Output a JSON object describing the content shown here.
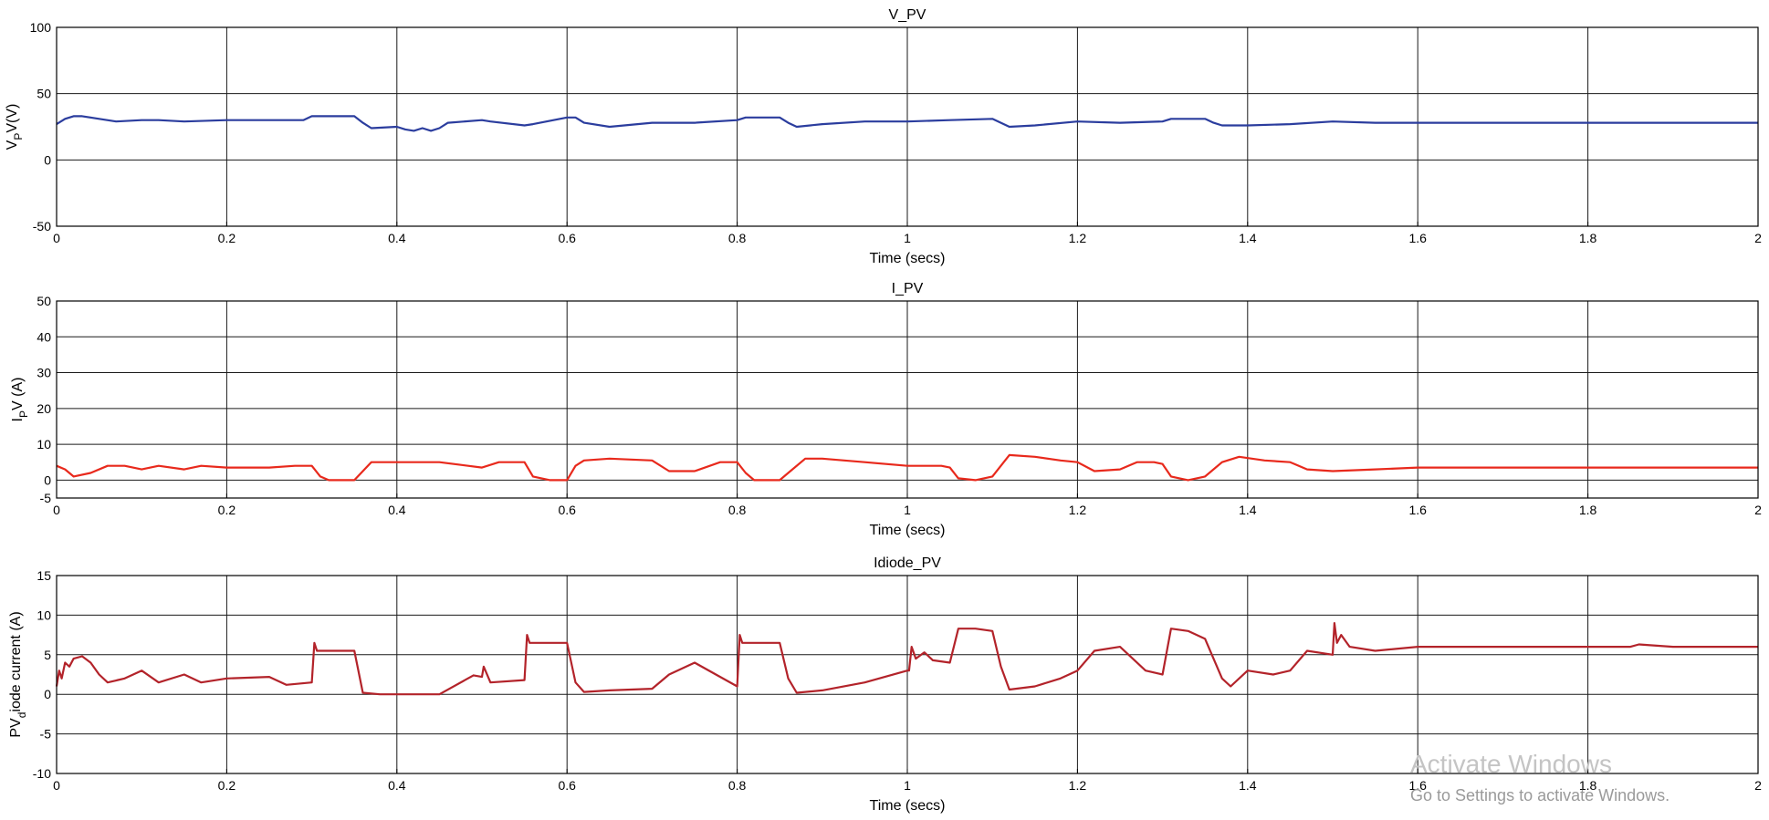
{
  "chart_data": [
    {
      "type": "line",
      "title": "V_PV",
      "xlabel": "Time (secs)",
      "ylabel_main": "V",
      "ylabel_sub": "P",
      "ylabel_rest": "V(V)",
      "xlim": [
        0,
        2
      ],
      "ylim": [
        -50,
        100
      ],
      "xticks": [
        0,
        0.2,
        0.4,
        0.6,
        0.8,
        1,
        1.2,
        1.4,
        1.6,
        1.8,
        2
      ],
      "yticks": [
        -50,
        0,
        50,
        100
      ],
      "grid": true,
      "series": [
        {
          "color": "#2b3d9e",
          "x": [
            0,
            0.01,
            0.02,
            0.03,
            0.05,
            0.07,
            0.1,
            0.12,
            0.15,
            0.2,
            0.25,
            0.29,
            0.3,
            0.35,
            0.36,
            0.37,
            0.4,
            0.41,
            0.42,
            0.43,
            0.44,
            0.45,
            0.46,
            0.5,
            0.51,
            0.55,
            0.56,
            0.6,
            0.61,
            0.62,
            0.65,
            0.7,
            0.75,
            0.8,
            0.81,
            0.85,
            0.86,
            0.87,
            0.9,
            0.95,
            1.0,
            1.05,
            1.1,
            1.11,
            1.12,
            1.15,
            1.2,
            1.25,
            1.3,
            1.31,
            1.35,
            1.36,
            1.37,
            1.4,
            1.45,
            1.5,
            1.55,
            1.6,
            1.7,
            1.8,
            1.9,
            2.0
          ],
          "y": [
            27,
            31,
            33,
            33,
            31,
            29,
            30,
            30,
            29,
            30,
            30,
            30,
            33,
            33,
            28,
            24,
            25,
            23,
            22,
            24,
            22,
            24,
            28,
            30,
            29,
            26,
            27,
            32,
            32,
            28,
            25,
            28,
            28,
            30,
            32,
            32,
            28,
            25,
            27,
            29,
            29,
            30,
            31,
            28,
            25,
            26,
            29,
            28,
            29,
            31,
            31,
            28,
            26,
            26,
            27,
            29,
            28,
            28,
            28,
            28,
            28,
            28
          ]
        }
      ]
    },
    {
      "type": "line",
      "title": "I_PV",
      "xlabel": "Time (secs)",
      "ylabel_main": "I",
      "ylabel_sub": "P",
      "ylabel_rest": "V (A)",
      "xlim": [
        0,
        2
      ],
      "ylim": [
        -5,
        50
      ],
      "xticks": [
        0,
        0.2,
        0.4,
        0.6,
        0.8,
        1,
        1.2,
        1.4,
        1.6,
        1.8,
        2
      ],
      "yticks": [
        0,
        10,
        20,
        30,
        40,
        50
      ],
      "ytick_bottom": -5,
      "grid": true,
      "series": [
        {
          "color": "#e8291c",
          "x": [
            0,
            0.01,
            0.02,
            0.04,
            0.06,
            0.08,
            0.1,
            0.12,
            0.15,
            0.17,
            0.2,
            0.25,
            0.28,
            0.3,
            0.31,
            0.32,
            0.35,
            0.37,
            0.4,
            0.45,
            0.5,
            0.52,
            0.54,
            0.55,
            0.56,
            0.58,
            0.6,
            0.61,
            0.62,
            0.65,
            0.7,
            0.72,
            0.75,
            0.78,
            0.8,
            0.81,
            0.82,
            0.85,
            0.86,
            0.88,
            0.9,
            0.95,
            1.0,
            1.04,
            1.05,
            1.06,
            1.08,
            1.1,
            1.12,
            1.15,
            1.18,
            1.2,
            1.22,
            1.25,
            1.27,
            1.29,
            1.3,
            1.31,
            1.33,
            1.35,
            1.37,
            1.39,
            1.42,
            1.45,
            1.47,
            1.5,
            1.55,
            1.6,
            1.7,
            1.8,
            1.9,
            2.0
          ],
          "y": [
            4,
            3,
            1,
            2,
            4,
            4,
            3,
            4,
            3,
            4,
            3.5,
            3.5,
            4,
            4,
            1,
            0,
            0,
            5,
            5,
            5,
            3.5,
            5,
            5,
            5,
            1,
            0,
            0,
            4,
            5.5,
            6,
            5.5,
            2.5,
            2.5,
            5,
            5,
            2,
            0,
            0,
            2,
            6,
            6,
            5,
            4,
            4,
            3.5,
            0.5,
            0,
            1,
            7,
            6.5,
            5.5,
            5,
            2.5,
            3,
            5,
            5,
            4.5,
            1,
            0,
            1,
            5,
            6.5,
            5.5,
            5,
            3,
            2.5,
            3,
            3.5,
            3.5,
            3.5,
            3.5,
            3.5
          ]
        }
      ]
    },
    {
      "type": "line",
      "title": "Idiode_PV",
      "xlabel": "Time (secs)",
      "ylabel_main": "PV",
      "ylabel_sub": "d",
      "ylabel_rest": "iode current (A)",
      "xlim": [
        0,
        2
      ],
      "ylim": [
        -10,
        15
      ],
      "xticks": [
        0,
        0.2,
        0.4,
        0.6,
        0.8,
        1,
        1.2,
        1.4,
        1.6,
        1.8,
        2
      ],
      "yticks": [
        -10,
        -5,
        0,
        5,
        10,
        15
      ],
      "grid": true,
      "series": [
        {
          "color": "#b3232a",
          "x": [
            0,
            0.003,
            0.006,
            0.01,
            0.015,
            0.02,
            0.03,
            0.04,
            0.05,
            0.06,
            0.08,
            0.1,
            0.12,
            0.15,
            0.17,
            0.2,
            0.25,
            0.27,
            0.3,
            0.303,
            0.306,
            0.32,
            0.35,
            0.36,
            0.38,
            0.45,
            0.48,
            0.49,
            0.5,
            0.502,
            0.51,
            0.55,
            0.553,
            0.556,
            0.57,
            0.6,
            0.61,
            0.62,
            0.65,
            0.7,
            0.72,
            0.75,
            0.8,
            0.803,
            0.806,
            0.82,
            0.85,
            0.86,
            0.87,
            0.9,
            0.95,
            1.0,
            1.002,
            1.005,
            1.01,
            1.02,
            1.03,
            1.05,
            1.06,
            1.08,
            1.1,
            1.11,
            1.12,
            1.15,
            1.18,
            1.2,
            1.22,
            1.25,
            1.28,
            1.3,
            1.31,
            1.33,
            1.35,
            1.37,
            1.38,
            1.4,
            1.43,
            1.45,
            1.47,
            1.5,
            1.502,
            1.505,
            1.51,
            1.52,
            1.55,
            1.6,
            1.7,
            1.8,
            1.85,
            1.86,
            1.9,
            2.0
          ],
          "y": [
            1,
            3,
            2,
            4,
            3.5,
            4.5,
            4.8,
            4,
            2.5,
            1.5,
            2,
            3,
            1.5,
            2.5,
            1.5,
            2,
            2.2,
            1.2,
            1.5,
            6.5,
            5.5,
            5.5,
            5.5,
            0.2,
            0,
            0,
            1.8,
            2.4,
            2.2,
            3.5,
            1.5,
            1.8,
            7.5,
            6.5,
            6.5,
            6.5,
            1.5,
            0.3,
            0.5,
            0.7,
            2.5,
            4,
            1,
            7.5,
            6.5,
            6.5,
            6.5,
            2,
            0.2,
            0.5,
            1.5,
            3,
            3,
            6,
            4.5,
            5.3,
            4.3,
            4,
            8.3,
            8.3,
            8,
            3.5,
            0.6,
            1,
            2,
            3,
            5.5,
            6,
            3,
            2.5,
            8.3,
            8,
            7,
            2,
            1,
            3,
            2.5,
            3,
            5.5,
            5,
            9,
            6.5,
            7.5,
            6,
            5.5,
            6,
            6,
            6,
            6,
            6.3,
            6,
            6
          ]
        }
      ]
    }
  ],
  "watermark": {
    "title": "Activate Windows",
    "subtitle": "Go to Settings to activate Windows."
  }
}
